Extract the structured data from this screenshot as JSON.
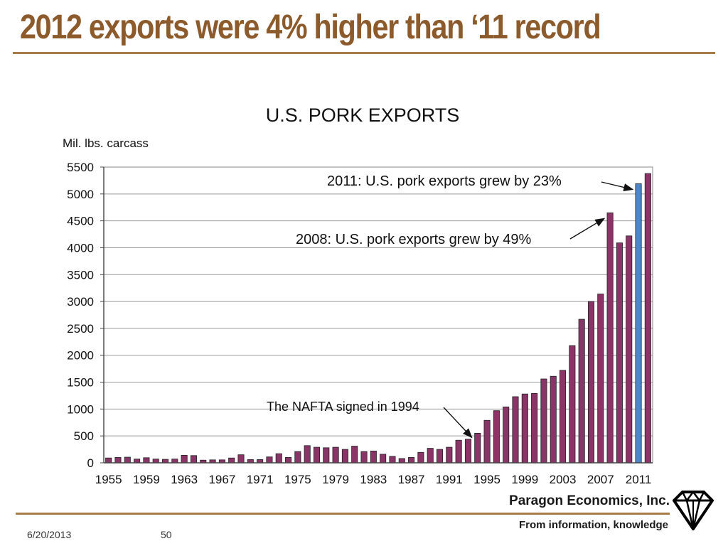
{
  "slide": {
    "title": "2012 exports were 4% higher than ‘11 record",
    "company": "Paragon Economics, Inc.",
    "tagline": "From information, knowledge",
    "date": "6/20/2013",
    "page_number": "50"
  },
  "colors": {
    "title": "#8c5a2b",
    "rule": "#a77b4b",
    "bar": "#8b3468",
    "highlight_bar": "#4f86c6"
  },
  "chart_data": {
    "type": "bar",
    "title": "U.S. PORK EXPORTS",
    "ylabel": "Mil. lbs. carcass",
    "ylim": [
      0,
      5500
    ],
    "yticks": [
      0,
      500,
      1000,
      1500,
      2000,
      2500,
      3000,
      3500,
      4000,
      4500,
      5000,
      5500
    ],
    "grid": true,
    "xtick_labels": [
      "1955",
      "1959",
      "1963",
      "1967",
      "1971",
      "1975",
      "1979",
      "1983",
      "1987",
      "1991",
      "1995",
      "1999",
      "2003",
      "2007",
      "2011"
    ],
    "categories": [
      1955,
      1956,
      1957,
      1958,
      1959,
      1960,
      1961,
      1962,
      1963,
      1964,
      1965,
      1966,
      1967,
      1968,
      1969,
      1970,
      1971,
      1972,
      1973,
      1974,
      1975,
      1976,
      1977,
      1978,
      1979,
      1980,
      1981,
      1982,
      1983,
      1984,
      1985,
      1986,
      1987,
      1988,
      1989,
      1990,
      1991,
      1992,
      1993,
      1994,
      1995,
      1996,
      1997,
      1998,
      1999,
      2000,
      2001,
      2002,
      2003,
      2004,
      2005,
      2006,
      2007,
      2008,
      2009,
      2010,
      2011,
      2012
    ],
    "values": [
      90,
      100,
      105,
      70,
      95,
      70,
      65,
      70,
      140,
      135,
      50,
      55,
      55,
      90,
      150,
      60,
      60,
      110,
      170,
      100,
      210,
      320,
      290,
      280,
      290,
      250,
      310,
      210,
      220,
      160,
      120,
      80,
      100,
      195,
      270,
      250,
      290,
      420,
      440,
      550,
      790,
      970,
      1040,
      1230,
      1280,
      1290,
      1560,
      1610,
      1720,
      2180,
      2670,
      3000,
      3140,
      4650,
      4090,
      4220,
      5190,
      5380
    ],
    "highlight_category": 2011,
    "annotations": [
      {
        "text": "2011:  U.S. pork exports grew by 23%",
        "target": 2011
      },
      {
        "text": "2008:  U.S. pork exports grew by 49%",
        "target": 2008
      },
      {
        "text": "The NAFTA signed in 1994",
        "target": 1994
      }
    ]
  }
}
